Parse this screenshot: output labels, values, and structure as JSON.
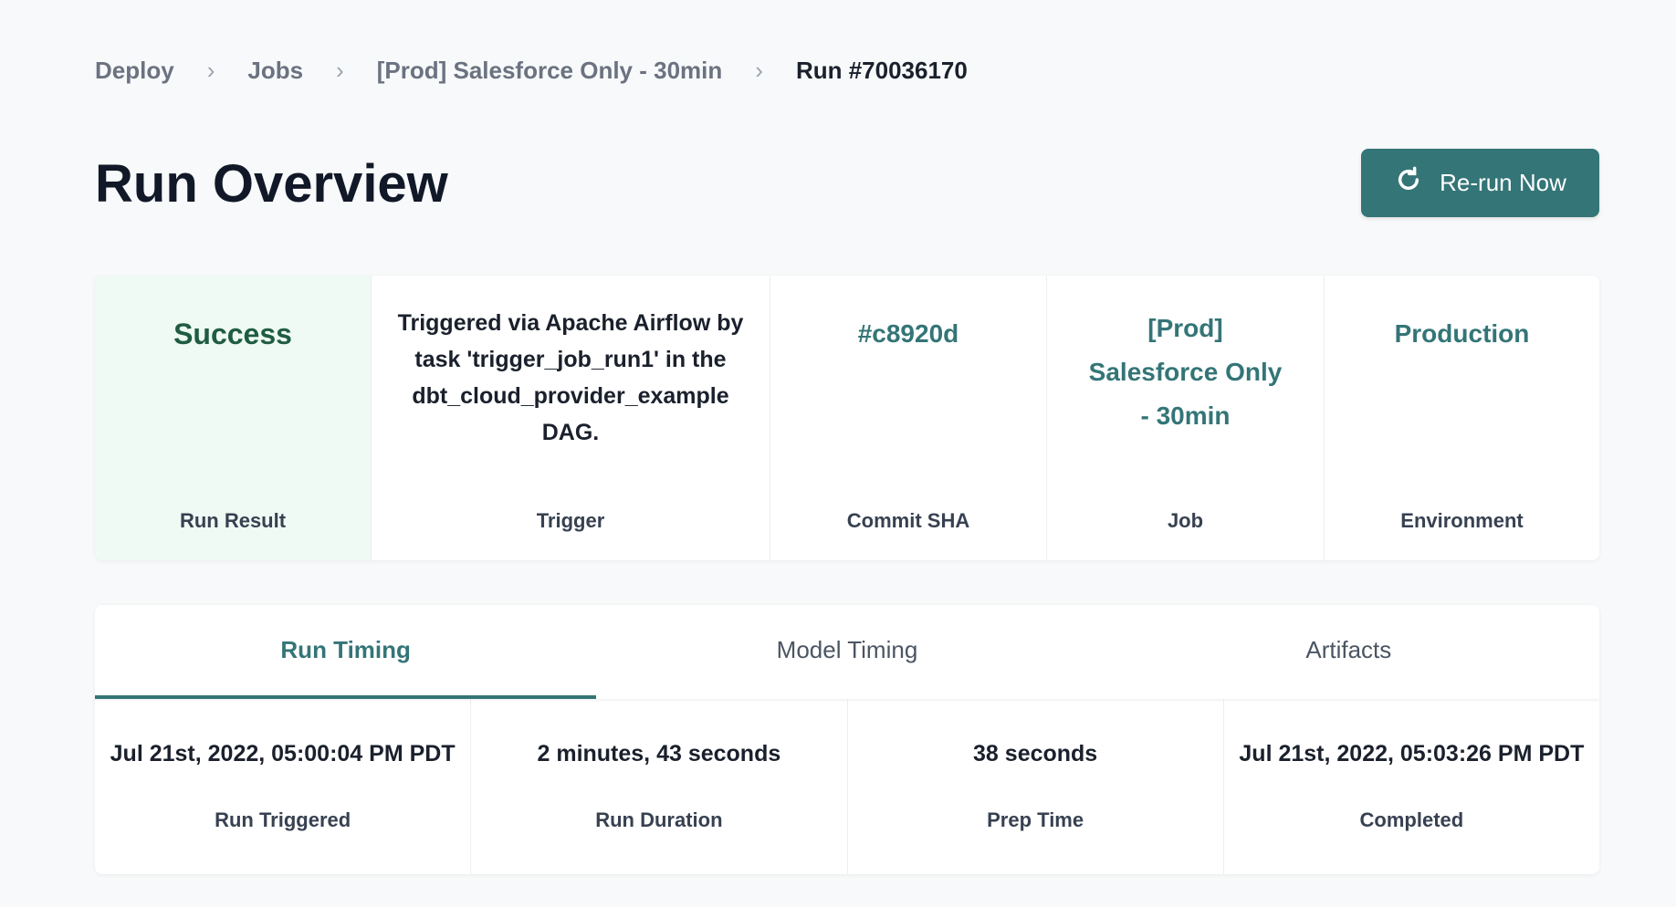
{
  "breadcrumb": [
    "Deploy",
    "Jobs",
    "[Prod] Salesforce Only - 30min",
    "Run #70036170"
  ],
  "page_title": "Run Overview",
  "rerun_label": "Re-run Now",
  "summary": {
    "result": {
      "value": "Success",
      "label": "Run Result"
    },
    "trigger": {
      "value": "Triggered via Apache Airflow by task 'trigger_job_run1' in the dbt_cloud_provider_example DAG.",
      "label": "Trigger"
    },
    "commit": {
      "value": "#c8920d",
      "label": "Commit SHA"
    },
    "job": {
      "value": "[Prod] Salesforce Only - 30min",
      "label": "Job"
    },
    "environment": {
      "value": "Production",
      "label": "Environment"
    }
  },
  "tabs": [
    "Run Timing",
    "Model Timing",
    "Artifacts"
  ],
  "active_tab": "Run Timing",
  "timing": [
    {
      "value": "Jul 21st, 2022, 05:00:04 PM PDT",
      "label": "Run Triggered"
    },
    {
      "value": "2 minutes, 43 seconds",
      "label": "Run Duration"
    },
    {
      "value": "38 seconds",
      "label": "Prep Time"
    },
    {
      "value": "Jul 21st, 2022, 05:03:26 PM PDT",
      "label": "Completed"
    }
  ],
  "colors": {
    "accent": "#347577",
    "success_text": "#1f5c43",
    "success_bg": "#eefaf3"
  }
}
